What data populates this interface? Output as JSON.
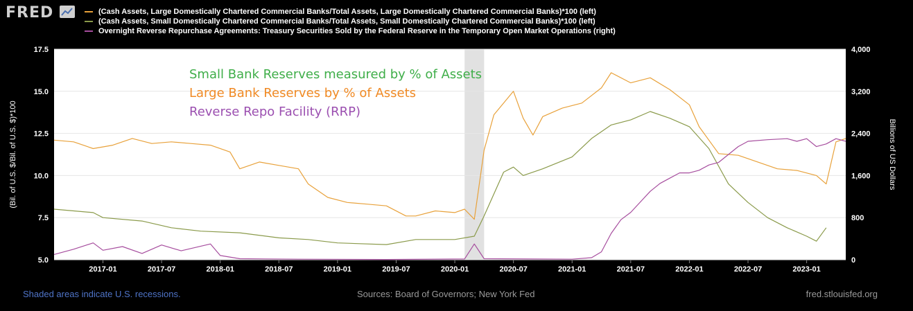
{
  "header": {
    "logo": "FRED",
    "logo_icon": "line-chart-icon"
  },
  "legend": [
    {
      "label": "(Cash Assets, Large Domestically Chartered Commercial Banks/Total Assets, Large Domestically Chartered Commercial Banks)*100 (left)",
      "color": "#e8a13a"
    },
    {
      "label": "(Cash Assets, Small Domestically Chartered Commercial Banks/Total Assets, Small Domestically Chartered Commercial Banks)*100 (left)",
      "color": "#8a9a4a"
    },
    {
      "label": "Overnight Reverse Repurchase Agreements: Treasury Securities Sold by the Federal Reserve in the Temporary Open Market Operations (right)",
      "color": "#a64d9e"
    }
  ],
  "annotations": [
    {
      "text": "Small Bank Reserves measured by % of Assets",
      "color": "#3fae49"
    },
    {
      "text": "Large Bank Reserves  by % of Assets",
      "color": "#f08a24"
    },
    {
      "text": "Reverse Repo Facility (RRP)",
      "color": "#9b4fb0"
    }
  ],
  "footer": {
    "left": "Shaded areas indicate U.S. recessions.",
    "middle": "Sources: Board of Governors; New York Fed",
    "right": "fred.stlouisfed.org"
  },
  "chart_data": {
    "type": "line",
    "x_range": [
      "2016-08",
      "2023-05"
    ],
    "ylabel_left": "(Bil. of U.S. $/Bil. of U.S. $)*100",
    "ylabel_right": "Billions of US Dollars",
    "ylim_left": [
      5,
      17.5
    ],
    "ylim_right": [
      0,
      4000
    ],
    "left_ticks": [
      "5.0",
      "7.5",
      "10.0",
      "12.5",
      "15.0",
      "17.5"
    ],
    "right_ticks": [
      "0",
      "800",
      "1,600",
      "2,400",
      "3,200",
      "4,000"
    ],
    "x_ticks": [
      "2017-01",
      "2017-07",
      "2018-01",
      "2018-07",
      "2019-01",
      "2019-07",
      "2020-01",
      "2020-07",
      "2021-01",
      "2021-07",
      "2022-01",
      "2022-07",
      "2023-01"
    ],
    "grid": true,
    "recession": {
      "start": "2020-02",
      "end": "2020-04"
    },
    "series": [
      {
        "name": "Large Banks cash assets / total assets (left)",
        "axis": "left",
        "color": "#e8a13a",
        "points": [
          [
            "2016-08",
            12.1
          ],
          [
            "2016-10",
            12.0
          ],
          [
            "2016-12",
            11.6
          ],
          [
            "2017-02",
            11.8
          ],
          [
            "2017-04",
            12.2
          ],
          [
            "2017-06",
            11.9
          ],
          [
            "2017-08",
            12.0
          ],
          [
            "2017-10",
            11.9
          ],
          [
            "2017-12",
            11.8
          ],
          [
            "2018-02",
            11.4
          ],
          [
            "2018-03",
            10.4
          ],
          [
            "2018-05",
            10.8
          ],
          [
            "2018-07",
            10.6
          ],
          [
            "2018-09",
            10.4
          ],
          [
            "2018-10",
            9.5
          ],
          [
            "2018-12",
            8.7
          ],
          [
            "2019-02",
            8.4
          ],
          [
            "2019-04",
            8.3
          ],
          [
            "2019-06",
            8.2
          ],
          [
            "2019-08",
            7.6
          ],
          [
            "2019-09",
            7.6
          ],
          [
            "2019-11",
            7.9
          ],
          [
            "2020-01",
            7.8
          ],
          [
            "2020-02",
            8.0
          ],
          [
            "2020-03",
            7.4
          ],
          [
            "2020-04",
            11.5
          ],
          [
            "2020-05",
            13.6
          ],
          [
            "2020-07",
            15.0
          ],
          [
            "2020-08",
            13.4
          ],
          [
            "2020-09",
            12.4
          ],
          [
            "2020-10",
            13.5
          ],
          [
            "2020-12",
            14.0
          ],
          [
            "2021-02",
            14.3
          ],
          [
            "2021-04",
            15.2
          ],
          [
            "2021-05",
            16.1
          ],
          [
            "2021-07",
            15.5
          ],
          [
            "2021-09",
            15.8
          ],
          [
            "2021-11",
            15.1
          ],
          [
            "2022-01",
            14.2
          ],
          [
            "2022-02",
            12.9
          ],
          [
            "2022-04",
            11.3
          ],
          [
            "2022-06",
            11.2
          ],
          [
            "2022-08",
            10.8
          ],
          [
            "2022-10",
            10.4
          ],
          [
            "2022-12",
            10.3
          ],
          [
            "2023-02",
            10.0
          ],
          [
            "2023-03",
            9.5
          ],
          [
            "2023-04",
            12.0
          ],
          [
            "2023-05",
            12.2
          ]
        ]
      },
      {
        "name": "Small Banks cash assets / total assets (left)",
        "axis": "left",
        "color": "#8a9a4a",
        "points": [
          [
            "2016-08",
            8.0
          ],
          [
            "2016-12",
            7.8
          ],
          [
            "2017-01",
            7.5
          ],
          [
            "2017-05",
            7.3
          ],
          [
            "2017-08",
            6.9
          ],
          [
            "2017-11",
            6.7
          ],
          [
            "2018-03",
            6.6
          ],
          [
            "2018-07",
            6.3
          ],
          [
            "2018-10",
            6.2
          ],
          [
            "2019-01",
            6.0
          ],
          [
            "2019-06",
            5.9
          ],
          [
            "2019-09",
            6.2
          ],
          [
            "2020-01",
            6.2
          ],
          [
            "2020-03",
            6.4
          ],
          [
            "2020-04",
            7.6
          ],
          [
            "2020-06",
            10.2
          ],
          [
            "2020-07",
            10.5
          ],
          [
            "2020-08",
            10.0
          ],
          [
            "2020-10",
            10.4
          ],
          [
            "2021-01",
            11.1
          ],
          [
            "2021-03",
            12.2
          ],
          [
            "2021-05",
            13.0
          ],
          [
            "2021-07",
            13.3
          ],
          [
            "2021-09",
            13.8
          ],
          [
            "2021-11",
            13.4
          ],
          [
            "2022-01",
            12.9
          ],
          [
            "2022-03",
            11.6
          ],
          [
            "2022-05",
            9.5
          ],
          [
            "2022-07",
            8.4
          ],
          [
            "2022-09",
            7.5
          ],
          [
            "2022-11",
            6.9
          ],
          [
            "2023-01",
            6.4
          ],
          [
            "2023-02",
            6.1
          ],
          [
            "2023-03",
            6.9
          ]
        ]
      },
      {
        "name": "Overnight Reverse Repurchase Agreements (right)",
        "axis": "right",
        "color": "#a64d9e",
        "points": [
          [
            "2016-08",
            100
          ],
          [
            "2016-10",
            200
          ],
          [
            "2016-12",
            320
          ],
          [
            "2017-01",
            180
          ],
          [
            "2017-03",
            250
          ],
          [
            "2017-05",
            120
          ],
          [
            "2017-07",
            280
          ],
          [
            "2017-09",
            170
          ],
          [
            "2017-12",
            300
          ],
          [
            "2018-01",
            80
          ],
          [
            "2018-03",
            20
          ],
          [
            "2018-09",
            10
          ],
          [
            "2019-06",
            5
          ],
          [
            "2020-02",
            15
          ],
          [
            "2020-03",
            300
          ],
          [
            "2020-04",
            20
          ],
          [
            "2021-01",
            10
          ],
          [
            "2021-03",
            40
          ],
          [
            "2021-04",
            150
          ],
          [
            "2021-05",
            500
          ],
          [
            "2021-06",
            760
          ],
          [
            "2021-07",
            900
          ],
          [
            "2021-08",
            1100
          ],
          [
            "2021-09",
            1300
          ],
          [
            "2021-10",
            1450
          ],
          [
            "2021-11",
            1550
          ],
          [
            "2021-12",
            1650
          ],
          [
            "2022-01",
            1650
          ],
          [
            "2022-02",
            1700
          ],
          [
            "2022-03",
            1800
          ],
          [
            "2022-04",
            1850
          ],
          [
            "2022-05",
            2000
          ],
          [
            "2022-06",
            2150
          ],
          [
            "2022-07",
            2250
          ],
          [
            "2022-09",
            2280
          ],
          [
            "2022-11",
            2300
          ],
          [
            "2022-12",
            2250
          ],
          [
            "2023-01",
            2300
          ],
          [
            "2023-02",
            2150
          ],
          [
            "2023-03",
            2200
          ],
          [
            "2023-04",
            2300
          ],
          [
            "2023-05",
            2250
          ]
        ]
      }
    ]
  }
}
